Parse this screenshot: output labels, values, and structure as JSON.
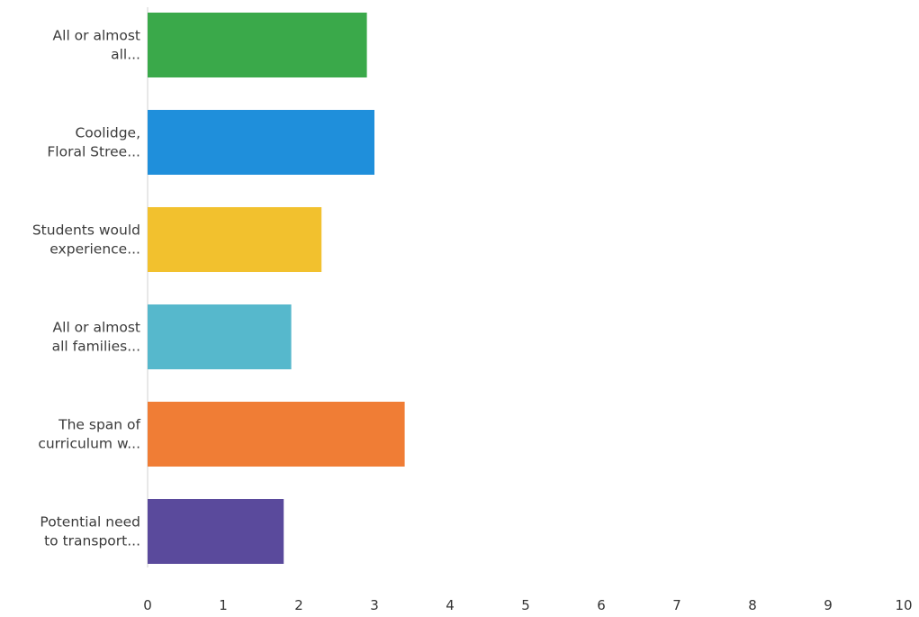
{
  "chart_data": {
    "type": "bar",
    "orientation": "horizontal",
    "categories": [
      [
        "All or almost",
        "all..."
      ],
      [
        "Coolidge,",
        "Floral Stree..."
      ],
      [
        "Students would",
        "experience..."
      ],
      [
        "All or almost",
        "all families..."
      ],
      [
        "The span of",
        "curriculum w..."
      ],
      [
        "Potential need",
        "to transport..."
      ]
    ],
    "values": [
      2.9,
      3.0,
      2.3,
      1.9,
      3.4,
      1.8
    ],
    "colors": [
      "#3aa94a",
      "#1f8fdb",
      "#f2c12e",
      "#56b8cc",
      "#f07d35",
      "#5a4a9c"
    ],
    "xlim": [
      0,
      10
    ],
    "xticks": [
      "0",
      "1",
      "2",
      "3",
      "4",
      "5",
      "6",
      "7",
      "8",
      "9",
      "10"
    ],
    "title": "",
    "xlabel": "",
    "ylabel": "",
    "grid": false,
    "legend": "none"
  }
}
